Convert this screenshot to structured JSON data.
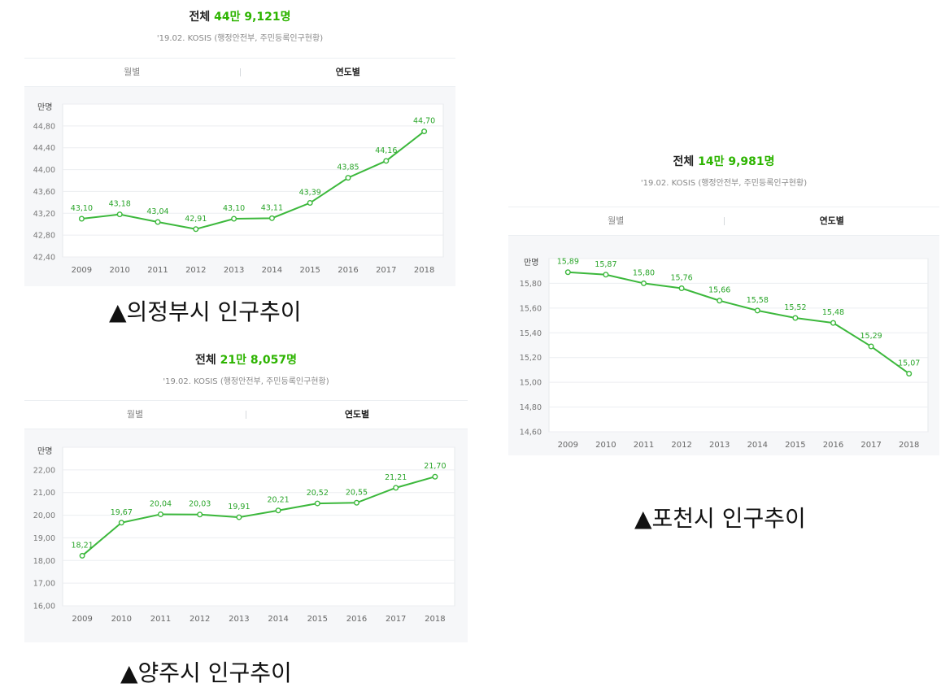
{
  "panels": [
    {
      "title_prefix": "전체",
      "title_value": "44만 9,121명",
      "source": "'19.02. KOSIS (행정안전부, 주민등록인구현황)",
      "tab_monthly": "월별",
      "tab_yearly": "연도별",
      "caption": "▲의정부시 인구추이"
    },
    {
      "title_prefix": "전체",
      "title_value": "21만 8,057명",
      "source": "'19.02. KOSIS (행정안전부, 주민등록인구현황)",
      "tab_monthly": "월별",
      "tab_yearly": "연도별",
      "caption": "▲양주시 인구추이"
    },
    {
      "title_prefix": "전체",
      "title_value": "14만 9,981명",
      "source": "'19.02. KOSIS (행정안전부, 주민등록인구현황)",
      "tab_monthly": "월별",
      "tab_yearly": "연도별",
      "caption": "▲포천시 인구추이"
    }
  ],
  "colors": {
    "accent": "#2db400",
    "line": "#3cb83c",
    "label": "#2aa52a",
    "plot_bg": "#f6f7f9"
  },
  "chart_data": [
    {
      "type": "line",
      "ylabel": "만명",
      "x": [
        "2009",
        "2010",
        "2011",
        "2012",
        "2013",
        "2014",
        "2015",
        "2016",
        "2017",
        "2018"
      ],
      "y": [
        43.1,
        43.18,
        43.04,
        42.91,
        43.1,
        43.11,
        43.39,
        43.85,
        44.16,
        44.7
      ],
      "value_labels": [
        "43,10",
        "43,18",
        "43,04",
        "42,91",
        "43,10",
        "43,11",
        "43,39",
        "43,85",
        "44,16",
        "44,70"
      ],
      "yticks": [
        42.4,
        42.8,
        43.2,
        43.6,
        44.0,
        44.4,
        44.8
      ],
      "ytick_labels": [
        "42,40",
        "42,80",
        "43,20",
        "43,60",
        "44,00",
        "44,40",
        "44,80"
      ],
      "ylim": [
        42.4,
        45.2
      ],
      "grid": true
    },
    {
      "type": "line",
      "ylabel": "만명",
      "x": [
        "2009",
        "2010",
        "2011",
        "2012",
        "2013",
        "2014",
        "2015",
        "2016",
        "2017",
        "2018"
      ],
      "y": [
        18.21,
        19.67,
        20.04,
        20.03,
        19.91,
        20.21,
        20.52,
        20.55,
        21.21,
        21.7
      ],
      "value_labels": [
        "18,21",
        "19,67",
        "20,04",
        "20,03",
        "19,91",
        "20,21",
        "20,52",
        "20,55",
        "21,21",
        "21,70"
      ],
      "yticks": [
        16,
        17,
        18,
        19,
        20,
        21,
        22
      ],
      "ytick_labels": [
        "16,00",
        "17,00",
        "18,00",
        "19,00",
        "20,00",
        "21,00",
        "22,00"
      ],
      "ylim": [
        16,
        23
      ],
      "grid": true
    },
    {
      "type": "line",
      "ylabel": "만명",
      "x": [
        "2009",
        "2010",
        "2011",
        "2012",
        "2013",
        "2014",
        "2015",
        "2016",
        "2017",
        "2018"
      ],
      "y": [
        15.89,
        15.87,
        15.8,
        15.76,
        15.66,
        15.58,
        15.52,
        15.48,
        15.29,
        15.07
      ],
      "value_labels": [
        "15,89",
        "15,87",
        "15,80",
        "15,76",
        "15,66",
        "15,58",
        "15,52",
        "15,48",
        "15,29",
        "15,07"
      ],
      "yticks": [
        14.6,
        14.8,
        15.0,
        15.2,
        15.4,
        15.6,
        15.8
      ],
      "ytick_labels": [
        "14,60",
        "14,80",
        "15,00",
        "15,20",
        "15,40",
        "15,60",
        "15,80"
      ],
      "ylim": [
        14.6,
        16.0
      ],
      "grid": true
    }
  ]
}
